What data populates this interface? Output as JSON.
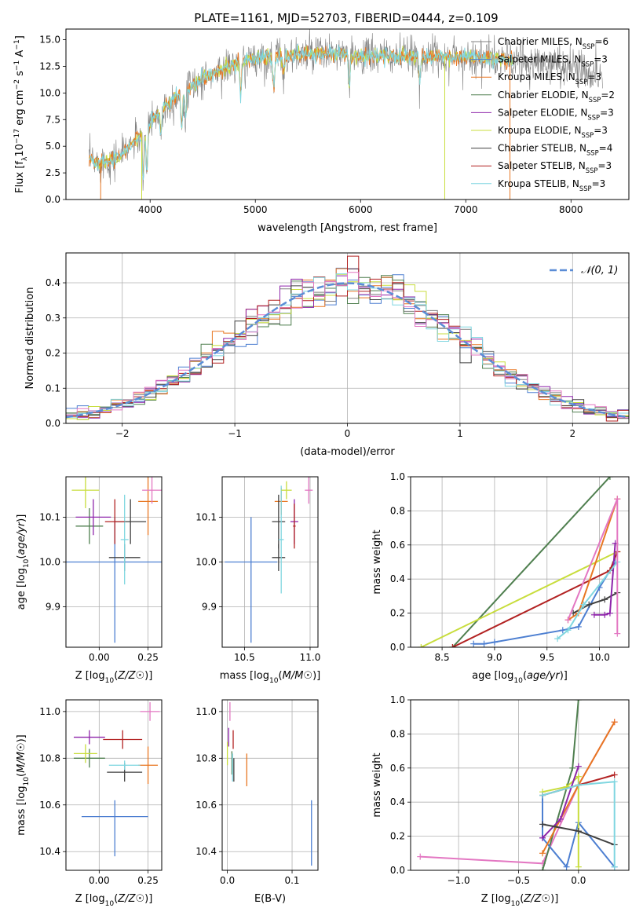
{
  "figure": {
    "title": "PLATE=1161, MJD=52703, FIBERID=0444, z=0.109"
  },
  "colors": {
    "chabrier_miles": "#808080",
    "salpeter_miles": "#4d7fd1",
    "kroupa_miles": "#e87722",
    "chabrier_elodie": "#4f7f4f",
    "salpeter_elodie": "#8e24aa",
    "kroupa_elodie": "#c8dd3c",
    "chabrier_stelib": "#404040",
    "salpeter_stelib": "#b22222",
    "kroupa_stelib": "#7fd6e0",
    "pink": "#e377c2",
    "normal_dashed": "#5b8dd6"
  },
  "chart_data": [
    {
      "id": "spectrum",
      "type": "line",
      "xlabel": "wavelength [Angstrom, rest frame]",
      "ylabel": "Flux [f_λ 10^-17 erg cm^-2 s^-1 A^-1]",
      "xlim": [
        3200,
        8550
      ],
      "ylim": [
        0,
        16
      ],
      "xticks": [
        "4000",
        "5000",
        "6000",
        "7000",
        "8000"
      ],
      "yticks": [
        "0.0",
        "2.5",
        "5.0",
        "7.5",
        "10.0",
        "12.5",
        "15.0"
      ],
      "legend": [
        "Chabrier MILES, N_SSP=6",
        "Salpeter MILES, N_SSP=3",
        "Kroupa MILES, N_SSP=3",
        "Chabrier ELODIE, N_SSP=2",
        "Salpeter ELODIE, N_SSP=3",
        "Kroupa ELODIE, N_SSP=3",
        "Chabrier STELIB, N_SSP=4",
        "Salpeter STELIB, N_SSP=3",
        "Kroupa STELIB, N_SSP=3"
      ],
      "continuum": {
        "x": [
          3400,
          3500,
          3700,
          3900,
          4100,
          4300,
          4500,
          4700,
          5000,
          5300,
          5600,
          6000,
          6500,
          7000,
          7500,
          8000,
          8300
        ],
        "y": [
          3.8,
          3.4,
          4.0,
          6.0,
          8.5,
          10.0,
          11.3,
          12.3,
          13.3,
          13.5,
          13.7,
          13.5,
          13.4,
          13.4,
          13.0,
          12.5,
          11.6
        ]
      }
    },
    {
      "id": "residuals",
      "type": "histogram",
      "xlabel": "(data-model)/error",
      "ylabel": "Normed distribution",
      "xlim": [
        -2.5,
        2.5
      ],
      "ylim": [
        0,
        0.485
      ],
      "xticks": [
        "-2",
        "-1",
        "0",
        "1",
        "2"
      ],
      "yticks": [
        "0.0",
        "0.1",
        "0.2",
        "0.3",
        "0.4"
      ],
      "legend": "𝒩(0, 1)",
      "bin_width": 0.1
    },
    {
      "id": "age_vs_z",
      "type": "scatter",
      "xlabel": "Z [log10(Z/Z☉)]",
      "ylabel": "age  [log10(age/yr)]",
      "xlim": [
        -0.17,
        0.32
      ],
      "ylim": [
        9.81,
        10.19
      ],
      "xticks": [
        "0.00",
        "0.25"
      ],
      "yticks": [
        "9.9",
        "10.0",
        "10.1"
      ],
      "points": [
        {
          "x": 0.08,
          "y": 10.0,
          "xerr": 0.26,
          "yerr": [
            0.18,
            0.1
          ],
          "c": "salpeter_miles"
        },
        {
          "x": 0.25,
          "y": 10.135,
          "xerr": 0.05,
          "yerr": 0.075,
          "c": "kroupa_miles"
        },
        {
          "x": 0.16,
          "y": 10.09,
          "xerr": 0.08,
          "yerr": 0.05,
          "c": "chabrier_stelib"
        },
        {
          "x": 0.13,
          "y": 10.01,
          "xerr": 0.08,
          "yerr": 0.03,
          "c": "chabrier_stelib"
        },
        {
          "x": -0.05,
          "y": 10.08,
          "xerr": 0.07,
          "yerr": 0.04,
          "c": "chabrier_elodie"
        },
        {
          "x": -0.03,
          "y": 10.1,
          "xerr": 0.09,
          "yerr": 0.04,
          "c": "salpeter_elodie"
        },
        {
          "x": -0.07,
          "y": 10.16,
          "xerr": 0.07,
          "yerr": 0.04,
          "c": "kroupa_elodie"
        },
        {
          "x": 0.13,
          "y": 10.05,
          "xerr": 0.02,
          "yerr": 0.1,
          "c": "kroupa_stelib"
        },
        {
          "x": 0.27,
          "y": 10.16,
          "xerr": 0.05,
          "yerr": 0.03,
          "c": "pink"
        },
        {
          "x": 0.08,
          "y": 10.09,
          "xerr": 0.05,
          "yerr": 0.05,
          "c": "salpeter_stelib"
        }
      ]
    },
    {
      "id": "age_vs_mass",
      "type": "scatter",
      "xlabel": "mass [log10(M/M☉)]",
      "ylabel": "",
      "xlim": [
        10.33,
        11.06
      ],
      "ylim": [
        9.81,
        10.19
      ],
      "xticks": [
        "10.5",
        "11.0"
      ],
      "yticks": [
        "9.9",
        "10.0",
        "10.1"
      ],
      "points": [
        {
          "x": 10.55,
          "y": 10.0,
          "xerr": 0.2,
          "yerr": [
            0.18,
            0.1
          ],
          "c": "salpeter_miles"
        },
        {
          "x": 10.78,
          "y": 10.135,
          "xerr": 0.05,
          "yerr": 0.03,
          "c": "kroupa_miles"
        },
        {
          "x": 10.76,
          "y": 10.09,
          "xerr": 0.05,
          "yerr": 0.06,
          "c": "chabrier_stelib"
        },
        {
          "x": 10.76,
          "y": 10.01,
          "xerr": 0.05,
          "yerr": 0.03,
          "c": "chabrier_stelib"
        },
        {
          "x": 10.78,
          "y": 10.05,
          "xerr": 0.02,
          "yerr": 0.12,
          "c": "kroupa_stelib"
        },
        {
          "x": 10.82,
          "y": 10.16,
          "xerr": 0.04,
          "yerr": 0.02,
          "c": "kroupa_elodie"
        },
        {
          "x": 10.88,
          "y": 10.09,
          "xerr": 0.03,
          "yerr": 0.05,
          "c": "salpeter_elodie"
        },
        {
          "x": 10.88,
          "y": 10.08,
          "xerr": 0.01,
          "yerr": 0.05,
          "c": "salpeter_stelib"
        },
        {
          "x": 10.99,
          "y": 10.16,
          "xerr": 0.03,
          "yerr": 0.03,
          "c": "pink"
        }
      ]
    },
    {
      "id": "weight_vs_age",
      "type": "line",
      "xlabel": "age  [log10(age/yr)]",
      "ylabel": "mass weight",
      "xlim": [
        8.2,
        10.28
      ],
      "ylim": [
        0,
        1.0
      ],
      "xticks": [
        "8.5",
        "9.0",
        "9.5",
        "10.0"
      ],
      "yticks": [
        "0.0",
        "0.2",
        "0.4",
        "0.6",
        "0.8",
        "1.0"
      ],
      "series": [
        {
          "c": "salpeter_miles",
          "x": [
            8.8,
            8.9,
            9.0,
            9.65,
            9.8,
            10.0,
            10.15
          ],
          "y": [
            0.02,
            0.02,
            0.03,
            0.1,
            0.12,
            0.35,
            0.5
          ]
        },
        {
          "c": "chabrier_elodie",
          "x": [
            8.6,
            10.1
          ],
          "y": [
            0.0,
            1.0
          ]
        },
        {
          "c": "kroupa_elodie",
          "x": [
            8.3,
            10.17
          ],
          "y": [
            0.0,
            0.56
          ]
        },
        {
          "c": "salpeter_stelib",
          "x": [
            8.6,
            10.1,
            10.17
          ],
          "y": [
            0.0,
            0.45,
            0.56
          ]
        },
        {
          "c": "chabrier_stelib",
          "x": [
            9.75,
            9.9,
            10.05,
            10.17
          ],
          "y": [
            0.2,
            0.25,
            0.28,
            0.32
          ]
        },
        {
          "c": "salpeter_elodie",
          "x": [
            9.95,
            10.05,
            10.1,
            10.15
          ],
          "y": [
            0.19,
            0.19,
            0.2,
            0.61
          ]
        },
        {
          "c": "kroupa_miles",
          "x": [
            9.7,
            9.8,
            10.17
          ],
          "y": [
            0.16,
            0.2,
            0.87
          ]
        },
        {
          "c": "kroupa_stelib",
          "x": [
            9.6,
            9.7,
            9.85,
            10.17
          ],
          "y": [
            0.05,
            0.1,
            0.25,
            0.5
          ]
        },
        {
          "c": "pink",
          "x": [
            9.7,
            10.17,
            10.17
          ],
          "y": [
            0.16,
            0.87,
            0.08
          ]
        }
      ]
    },
    {
      "id": "mass_vs_z",
      "type": "scatter",
      "xlabel": "Z [log10(Z/Z☉)]",
      "ylabel": "mass [log10(M/M☉)]",
      "xlim": [
        -0.17,
        0.32
      ],
      "ylim": [
        10.32,
        11.05
      ],
      "xticks": [
        "0.00",
        "0.25"
      ],
      "yticks": [
        "10.4",
        "10.6",
        "10.8",
        "11.0"
      ],
      "points": [
        {
          "x": 0.08,
          "y": 10.55,
          "xerr": 0.17,
          "yerr": [
            0.17,
            0.07
          ],
          "c": "salpeter_miles"
        },
        {
          "x": 0.25,
          "y": 10.77,
          "xerr": 0.05,
          "yerr": 0.08,
          "c": "kroupa_miles"
        },
        {
          "x": 0.13,
          "y": 10.74,
          "xerr": 0.09,
          "yerr": 0.04,
          "c": "chabrier_stelib"
        },
        {
          "x": 0.13,
          "y": 10.77,
          "xerr": 0.08,
          "yerr": 0.02,
          "c": "kroupa_stelib"
        },
        {
          "x": -0.05,
          "y": 10.8,
          "xerr": 0.08,
          "yerr": 0.04,
          "c": "chabrier_elodie"
        },
        {
          "x": -0.05,
          "y": 10.89,
          "xerr": 0.08,
          "yerr": 0.03,
          "c": "salpeter_elodie"
        },
        {
          "x": -0.07,
          "y": 10.82,
          "xerr": 0.06,
          "yerr": 0.04,
          "c": "kroupa_elodie"
        },
        {
          "x": 0.12,
          "y": 10.88,
          "xerr": 0.1,
          "yerr": 0.04,
          "c": "salpeter_stelib"
        },
        {
          "x": 0.26,
          "y": 11.0,
          "xerr": 0.05,
          "yerr": 0.04,
          "c": "pink"
        }
      ]
    },
    {
      "id": "mass_vs_ebv",
      "type": "scatter",
      "xlabel": "E(B-V)",
      "ylabel": "",
      "xlim": [
        -0.008,
        0.14
      ],
      "ylim": [
        10.32,
        11.05
      ],
      "xticks": [
        "0.0",
        "0.1"
      ],
      "yticks": [
        "10.4",
        "10.6",
        "10.8",
        "11.0"
      ],
      "points": [
        {
          "x": 0.0,
          "y": 10.82,
          "xerr": 0,
          "yerr": 0.05,
          "c": "kroupa_elodie"
        },
        {
          "x": 0.002,
          "y": 10.89,
          "xerr": 0,
          "yerr": 0.04,
          "c": "salpeter_elodie"
        },
        {
          "x": 0.004,
          "y": 11.0,
          "xerr": 0,
          "yerr": 0.04,
          "c": "pink"
        },
        {
          "x": 0.007,
          "y": 10.78,
          "xerr": 0,
          "yerr": 0.05,
          "c": "chabrier_elodie"
        },
        {
          "x": 0.009,
          "y": 10.88,
          "xerr": 0,
          "yerr": 0.04,
          "c": "salpeter_stelib"
        },
        {
          "x": 0.01,
          "y": 10.75,
          "xerr": 0,
          "yerr": 0.05,
          "c": "chabrier_stelib"
        },
        {
          "x": 0.008,
          "y": 10.76,
          "xerr": 0,
          "yerr": 0.06,
          "c": "kroupa_stelib"
        },
        {
          "x": 0.03,
          "y": 10.75,
          "xerr": 0,
          "yerr": 0.07,
          "c": "kroupa_miles"
        },
        {
          "x": 0.13,
          "y": 10.48,
          "xerr": 0,
          "yerr": 0.14,
          "c": "salpeter_miles"
        }
      ]
    },
    {
      "id": "weight_vs_z",
      "type": "line",
      "xlabel": "Z [log10(Z/Z☉)]",
      "ylabel": "mass weight",
      "xlim": [
        -1.4,
        0.42
      ],
      "ylim": [
        0,
        1.0
      ],
      "xticks": [
        "-1.0",
        "-0.5",
        "0.0"
      ],
      "yticks": [
        "0.0",
        "0.2",
        "0.4",
        "0.6",
        "0.8",
        "1.0"
      ],
      "series": [
        {
          "c": "pink",
          "x": [
            -1.32,
            -0.3,
            0.0,
            0.3
          ],
          "y": [
            0.08,
            0.04,
            0.5,
            0.87
          ]
        },
        {
          "c": "chabrier_elodie",
          "x": [
            -0.3,
            -0.05,
            0.0
          ],
          "y": [
            0.0,
            0.6,
            1.0
          ]
        },
        {
          "c": "salpeter_miles",
          "x": [
            -0.3,
            -0.3,
            -0.1,
            0.0,
            0.3
          ],
          "y": [
            0.44,
            0.19,
            0.02,
            0.28,
            0.02
          ]
        },
        {
          "c": "kroupa_miles",
          "x": [
            -0.3,
            0.0,
            0.3
          ],
          "y": [
            0.1,
            0.5,
            0.87
          ]
        },
        {
          "c": "kroupa_elodie",
          "x": [
            -0.3,
            -0.1,
            0.0,
            0.0
          ],
          "y": [
            0.46,
            0.49,
            0.55,
            0.02
          ]
        },
        {
          "c": "salpeter_elodie",
          "x": [
            -0.3,
            -0.15,
            0.0
          ],
          "y": [
            0.19,
            0.3,
            0.61
          ]
        },
        {
          "c": "chabrier_stelib",
          "x": [
            -0.3,
            0.0,
            0.3
          ],
          "y": [
            0.27,
            0.23,
            0.15
          ]
        },
        {
          "c": "salpeter_stelib",
          "x": [
            -0.3,
            0.0,
            0.3
          ],
          "y": [
            0.44,
            0.5,
            0.56
          ]
        },
        {
          "c": "kroupa_stelib",
          "x": [
            -0.3,
            0.0,
            0.3,
            0.3
          ],
          "y": [
            0.44,
            0.5,
            0.52,
            0.02
          ]
        }
      ]
    }
  ]
}
